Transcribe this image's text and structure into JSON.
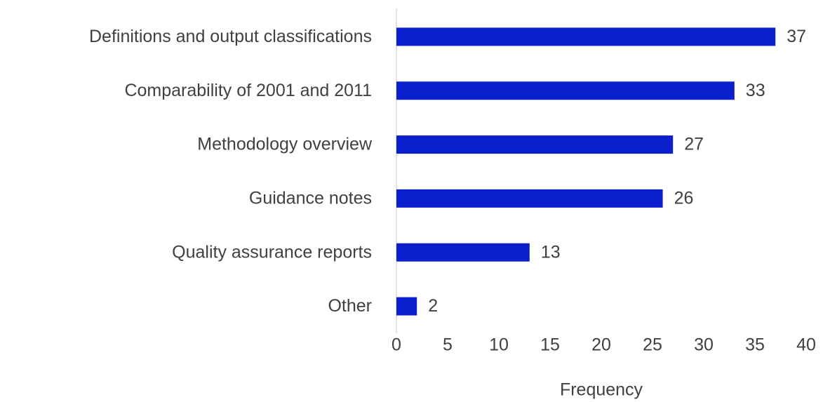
{
  "chart_data": {
    "type": "bar",
    "orientation": "horizontal",
    "categories": [
      "Definitions and output classifications",
      "Comparability of 2001 and 2011",
      "Methodology overview",
      "Guidance notes",
      "Quality assurance reports",
      "Other"
    ],
    "values": [
      37,
      33,
      27,
      26,
      13,
      2
    ],
    "color": "#0c1fcc",
    "xlabel": "Frequency",
    "xlim": [
      0,
      40
    ],
    "xticks": [
      0,
      5,
      10,
      15,
      20,
      25,
      30,
      35,
      40
    ],
    "grid": false
  }
}
